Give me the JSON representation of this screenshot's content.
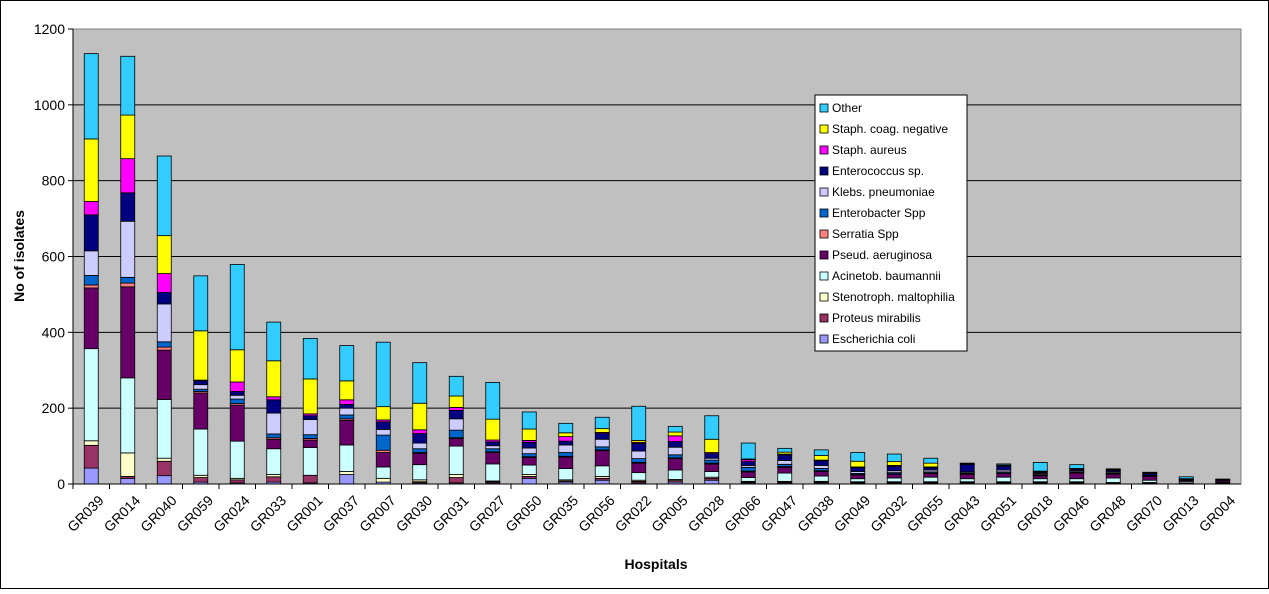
{
  "chart_data": {
    "type": "bar",
    "stacked": true,
    "xlabel": "Hospitals",
    "ylabel": "No of isolates",
    "ylim": [
      0,
      1200
    ],
    "yticks": [
      0,
      200,
      400,
      600,
      800,
      1000,
      1200
    ],
    "grid": true,
    "legend_position": "right",
    "plot_background": "#c0c0c0",
    "categories": [
      "GR039",
      "GR014",
      "GR040",
      "GR059",
      "GR024",
      "GR033",
      "GR001",
      "GR037",
      "GR007",
      "GR030",
      "GR031",
      "GR027",
      "GR050",
      "GR035",
      "GR056",
      "GR022",
      "GR005",
      "GR028",
      "GR066",
      "GR047",
      "GR038",
      "GR049",
      "GR032",
      "GR055",
      "GR043",
      "GR051",
      "GR018",
      "GR046",
      "GR048",
      "GR070",
      "GR013",
      "GR004"
    ],
    "series": [
      {
        "name": "Escherichia coli",
        "color": "#9999ff",
        "values": [
          42,
          15,
          22,
          5,
          3,
          5,
          3,
          25,
          5,
          3,
          3,
          3,
          15,
          5,
          10,
          3,
          5,
          10,
          3,
          3,
          3,
          2,
          2,
          2,
          2,
          2,
          2,
          2,
          1,
          1,
          1,
          1
        ]
      },
      {
        "name": "Proteus mirabilis",
        "color": "#993366",
        "values": [
          60,
          5,
          38,
          12,
          8,
          14,
          20,
          0,
          0,
          3,
          14,
          3,
          5,
          3,
          5,
          4,
          4,
          5,
          2,
          2,
          2,
          2,
          2,
          2,
          2,
          2,
          2,
          2,
          1,
          1,
          1,
          1
        ]
      },
      {
        "name": "Stenotroph. maltophilia",
        "color": "#ffffcc",
        "values": [
          12,
          62,
          8,
          6,
          4,
          6,
          0,
          8,
          10,
          5,
          8,
          2,
          5,
          3,
          5,
          3,
          3,
          3,
          2,
          2,
          2,
          2,
          2,
          2,
          2,
          2,
          2,
          2,
          2,
          2,
          1,
          1
        ]
      },
      {
        "name": "Acinetob. baumannii",
        "color": "#ccffff",
        "values": [
          243,
          198,
          155,
          122,
          98,
          68,
          73,
          70,
          30,
          40,
          75,
          45,
          25,
          30,
          28,
          20,
          25,
          15,
          10,
          22,
          14,
          8,
          10,
          12,
          8,
          12,
          8,
          8,
          12,
          6,
          4,
          2
        ]
      },
      {
        "name": "Pseud. aeruginosa",
        "color": "#660066",
        "values": [
          160,
          240,
          130,
          95,
          95,
          25,
          20,
          65,
          38,
          30,
          20,
          30,
          20,
          30,
          40,
          25,
          30,
          20,
          15,
          15,
          12,
          10,
          10,
          10,
          12,
          10,
          8,
          15,
          10,
          10,
          3,
          4
        ]
      },
      {
        "name": "Serratia Spp",
        "color": "#ff8080",
        "values": [
          8,
          10,
          8,
          4,
          4,
          4,
          4,
          4,
          6,
          2,
          2,
          2,
          2,
          2,
          2,
          2,
          2,
          2,
          2,
          2,
          2,
          1,
          1,
          1,
          1,
          1,
          1,
          1,
          1,
          1,
          1,
          0
        ]
      },
      {
        "name": "Enterobacter Spp",
        "color": "#0066cc",
        "values": [
          25,
          15,
          14,
          6,
          12,
          10,
          10,
          10,
          40,
          10,
          20,
          8,
          8,
          10,
          8,
          10,
          8,
          8,
          10,
          6,
          6,
          3,
          3,
          3,
          2,
          3,
          2,
          2,
          2,
          1,
          1,
          0
        ]
      },
      {
        "name": "Klebs. pneumoniae",
        "color": "#ccccff",
        "values": [
          65,
          148,
          100,
          12,
          10,
          55,
          40,
          18,
          15,
          15,
          30,
          8,
          15,
          20,
          20,
          20,
          20,
          5,
          5,
          10,
          8,
          5,
          5,
          5,
          3,
          5,
          3,
          3,
          3,
          1,
          1,
          0
        ]
      },
      {
        "name": "Enterococcus sp.",
        "color": "#000080",
        "values": [
          95,
          75,
          30,
          10,
          10,
          35,
          10,
          10,
          20,
          25,
          22,
          10,
          15,
          10,
          15,
          20,
          15,
          12,
          10,
          15,
          12,
          10,
          12,
          6,
          20,
          10,
          3,
          4,
          4,
          5,
          1,
          2
        ]
      },
      {
        "name": "Staph. aureus",
        "color": "#ff00ff",
        "values": [
          35,
          90,
          50,
          2,
          25,
          8,
          5,
          12,
          5,
          10,
          8,
          5,
          5,
          12,
          3,
          3,
          15,
          3,
          5,
          2,
          2,
          2,
          2,
          2,
          1,
          1,
          1,
          1,
          1,
          1,
          0,
          1
        ]
      },
      {
        "name": "Staph. coag. negative",
        "color": "#ffff00",
        "values": [
          165,
          115,
          100,
          130,
          85,
          95,
          92,
          50,
          35,
          70,
          30,
          55,
          30,
          10,
          10,
          5,
          10,
          35,
          2,
          5,
          12,
          15,
          10,
          10,
          2,
          2,
          2,
          1,
          1,
          1,
          0,
          0
        ]
      },
      {
        "name": "Other",
        "color": "#33ccff",
        "values": [
          225,
          155,
          210,
          145,
          225,
          102,
          107,
          93,
          170,
          107,
          52,
          97,
          45,
          25,
          30,
          90,
          15,
          62,
          42,
          10,
          15,
          23,
          20,
          13,
          0,
          3,
          23,
          10,
          2,
          1,
          5,
          1
        ]
      }
    ]
  }
}
